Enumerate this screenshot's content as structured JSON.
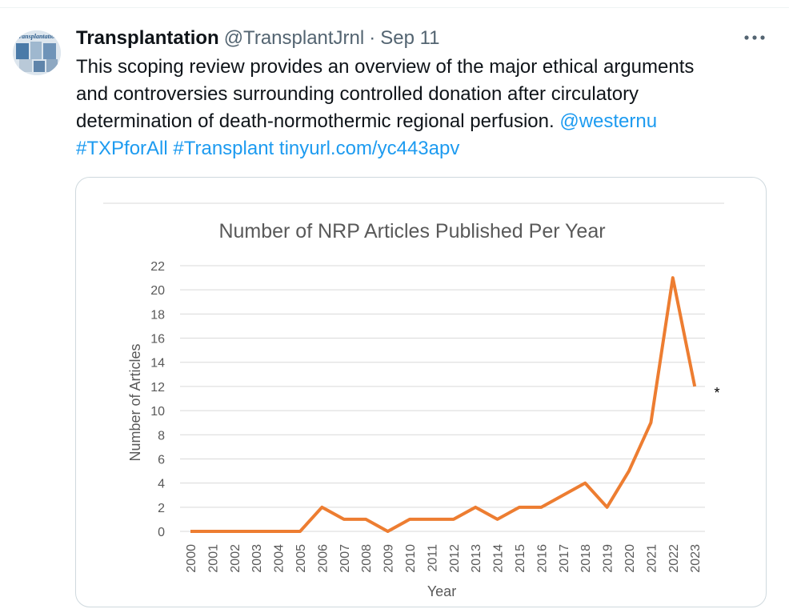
{
  "tweet": {
    "author_name": "Transplantation",
    "author_handle": "@TransplantJrnl",
    "separator": "·",
    "date": "Sep 11",
    "avatar_text": "Transplantation",
    "text_line1": "This scoping review provides an overview of the major ethical arguments",
    "text_line2": "and controversies surrounding controlled donation after circulatory",
    "text_line3": "determination of death-normothermic regional perfusion.",
    "mention": "@westernu",
    "hashtag1": "#TXPforAll",
    "hashtag2": "#Transplant",
    "url": "tinyurl.com/yc443apv"
  },
  "colors": {
    "link": "#1d9bf0",
    "line": "#ed7d31",
    "gridline": "#d9d9d9",
    "axis_text": "#595959"
  },
  "icons": {
    "more": "more-icon"
  },
  "chart_data": {
    "type": "line",
    "title": "Number of NRP Articles Published Per Year",
    "xlabel": "Year",
    "ylabel": "Number of Articles",
    "x": [
      "2000",
      "2001",
      "2002",
      "2003",
      "2004",
      "2005",
      "2006",
      "2007",
      "2008",
      "2009",
      "2010",
      "2011",
      "2012",
      "2013",
      "2014",
      "2015",
      "2016",
      "2017",
      "2018",
      "2019",
      "2020",
      "2021",
      "2022",
      "2023"
    ],
    "series": [
      {
        "values": [
          0,
          0,
          0,
          0,
          0,
          0,
          2,
          1,
          1,
          0,
          1,
          1,
          1,
          2,
          1,
          2,
          2,
          3,
          4,
          2,
          5,
          9,
          21,
          12
        ]
      }
    ],
    "ylim": [
      0,
      22
    ],
    "yticks": [
      0,
      2,
      4,
      6,
      8,
      10,
      12,
      14,
      16,
      18,
      20,
      22
    ],
    "annotation": "*",
    "grid": true,
    "legend": "none"
  }
}
